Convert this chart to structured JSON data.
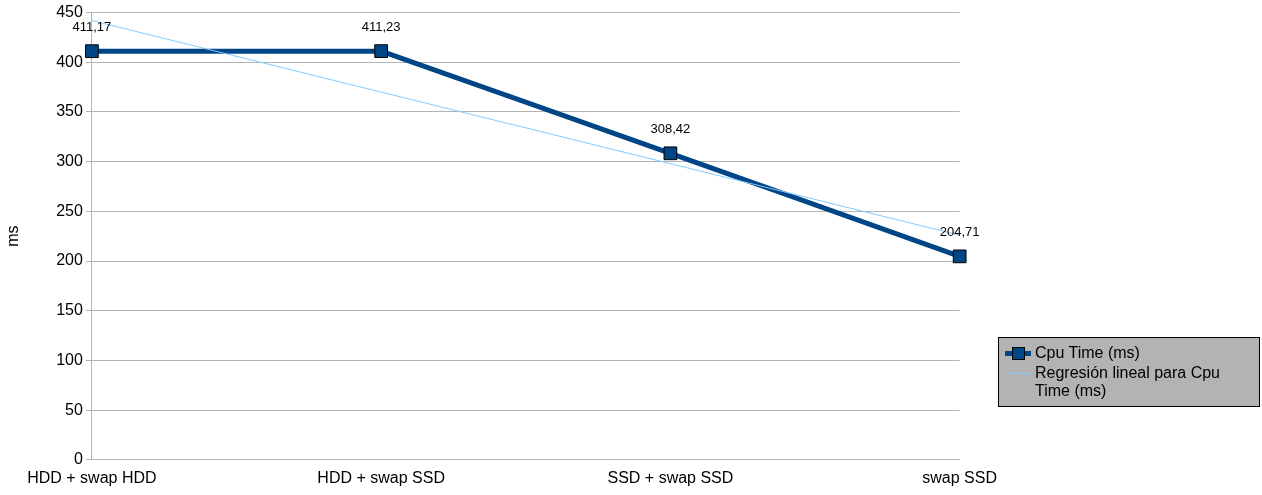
{
  "chart_data": {
    "type": "line",
    "ylabel": "ms",
    "categories": [
      "HDD + swap HDD",
      "HDD + swap SSD",
      "SSD + swap SSD",
      "swap SSD"
    ],
    "series": [
      {
        "name": "Cpu Time (ms)",
        "color": "#004586",
        "marker": "square",
        "values": [
          411.17,
          411.23,
          308.42,
          204.71
        ],
        "value_labels": [
          "411,17",
          "411,23",
          "308,42",
          "204,71"
        ]
      },
      {
        "name": "Regresión lineal para Cpu Time (ms)",
        "color": "#83caff",
        "marker": "none",
        "values": [
          442,
          370,
          298,
          226
        ]
      }
    ],
    "ylim": [
      0,
      450
    ],
    "yticks": [
      0,
      50,
      100,
      150,
      200,
      250,
      300,
      350,
      400,
      450
    ],
    "grid": "y",
    "legend": "right"
  }
}
